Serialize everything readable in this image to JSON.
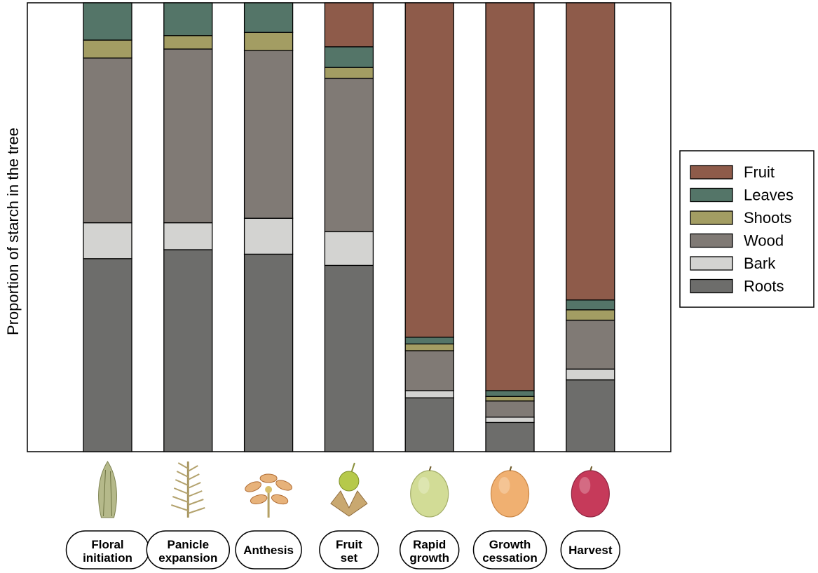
{
  "chart_data": {
    "type": "bar",
    "stacked": true,
    "normalized": true,
    "title": "",
    "xlabel": "",
    "ylabel": "Proportion of starch in the tree",
    "ylim": [
      0,
      1
    ],
    "grid": false,
    "legend_position": "right",
    "categories": [
      [
        "Floral",
        "initiation"
      ],
      [
        "Panicle",
        "expansion"
      ],
      [
        "Anthesis"
      ],
      [
        "Fruit",
        "set"
      ],
      [
        "Rapid",
        "growth"
      ],
      [
        "Growth",
        "cessation"
      ],
      [
        "Harvest"
      ]
    ],
    "category_icons": [
      "floral-bud-icon",
      "panicle-icon",
      "flower-icon",
      "fruit-set-icon",
      "green-mango-icon",
      "ripening-mango-icon",
      "red-mango-icon"
    ],
    "legend_order": [
      "Fruit",
      "Leaves",
      "Shoots",
      "Wood",
      "Bark",
      "Roots"
    ],
    "series": [
      {
        "name": "Roots",
        "color": "#6d6d6b",
        "values": [
          0.43,
          0.45,
          0.44,
          0.415,
          0.12,
          0.065,
          0.16
        ]
      },
      {
        "name": "Bark",
        "color": "#d3d3d1",
        "values": [
          0.08,
          0.06,
          0.08,
          0.075,
          0.016,
          0.012,
          0.024
        ]
      },
      {
        "name": "Wood",
        "color": "#807a75",
        "values": [
          0.367,
          0.387,
          0.374,
          0.342,
          0.089,
          0.036,
          0.109
        ]
      },
      {
        "name": "Shoots",
        "color": "#a39d63",
        "values": [
          0.04,
          0.03,
          0.04,
          0.024,
          0.015,
          0.01,
          0.023
        ]
      },
      {
        "name": "Leaves",
        "color": "#547568",
        "values": [
          0.083,
          0.073,
          0.066,
          0.046,
          0.015,
          0.013,
          0.022
        ]
      },
      {
        "name": "Fruit",
        "color": "#8e5b4a",
        "values": [
          0,
          0,
          0,
          0.098,
          0.745,
          0.864,
          0.662
        ]
      }
    ]
  }
}
